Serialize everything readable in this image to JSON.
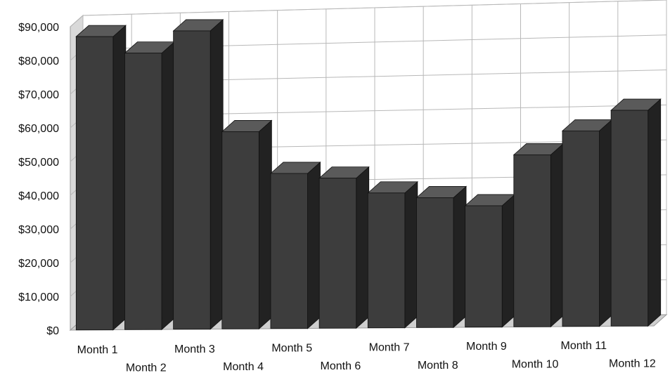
{
  "chart_data": {
    "type": "bar",
    "style": "3d-column",
    "categories": [
      "Month 1",
      "Month 2",
      "Month 3",
      "Month 4",
      "Month 5",
      "Month 6",
      "Month 7",
      "Month 8",
      "Month 9",
      "Month 10",
      "Month 11",
      "Month 12"
    ],
    "series": [
      {
        "values": [
          87000,
          82000,
          88500,
          58500,
          46000,
          44500,
          40000,
          38500,
          36000,
          51000,
          58000,
          64000
        ]
      }
    ],
    "yticks": [
      "$0",
      "$10,000",
      "$20,000",
      "$30,000",
      "$40,000",
      "$50,000",
      "$60,000",
      "$70,000",
      "$80,000",
      "$90,000"
    ],
    "ylim": [
      0,
      90000
    ],
    "grid": true,
    "legend": "none",
    "title": "",
    "xlabel": "",
    "ylabel": "",
    "colors": {
      "bar_front": "#3d3d3d",
      "bar_side": "#222222",
      "bar_top": "#5a5a5a",
      "grid": "#b8b8b8",
      "wall": "#ffffff"
    }
  }
}
